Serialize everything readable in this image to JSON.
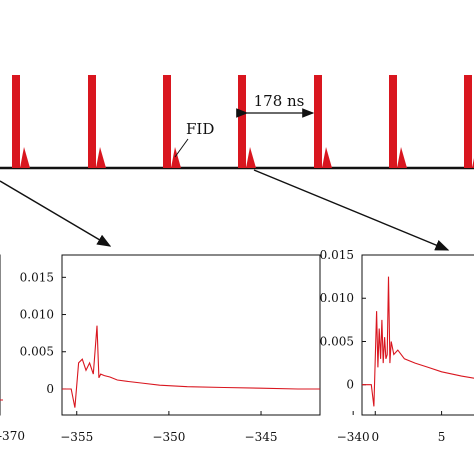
{
  "diagram": {
    "spacing_label": "178 ns",
    "fid_label": "FID",
    "pulse_color": "#d9161f",
    "trace_color": "#d9161f"
  },
  "chart_data": [
    {
      "type": "line",
      "title": "",
      "xlabel": "",
      "ylabel": "",
      "x_tick_labels": [
        "-370"
      ],
      "note": "left panel, mostly cropped"
    },
    {
      "type": "line",
      "title": "",
      "xlabel": "",
      "ylabel": "",
      "xlim": [
        -355.8,
        -341.8
      ],
      "ylim": [
        -0.0035,
        0.018
      ],
      "x_ticks": [
        -355,
        -350,
        -345,
        -340
      ],
      "x_tick_labels": [
        "−355",
        "−350",
        "−345",
        "−340"
      ],
      "y_ticks": [
        0,
        0.005,
        0.01,
        0.015
      ],
      "y_tick_labels": [
        "0",
        "0.005",
        "0.010",
        "0.015"
      ],
      "series": [
        {
          "x": [
            -355.8,
            -355.3,
            -355.1,
            -354.9,
            -354.7,
            -354.5,
            -354.3,
            -354.1,
            -353.9,
            -353.8,
            -353.7,
            -353.5,
            -353.2,
            -352.8,
            -352.2,
            -351.5,
            -350.5,
            -349.0,
            -347.0,
            -345.0,
            -343.0,
            -341.8
          ],
          "y": [
            0,
            0,
            -0.0025,
            0.0035,
            0.004,
            0.0025,
            0.0035,
            0.002,
            0.0085,
            0.0015,
            0.002,
            0.0018,
            0.0016,
            0.0012,
            0.001,
            0.0008,
            0.0005,
            0.0003,
            0.0002,
            0.0001,
            0.0,
            0.0
          ]
        }
      ]
    },
    {
      "type": "line",
      "title": "",
      "xlabel": "",
      "ylabel": "",
      "xlim": [
        -1.0,
        8.8
      ],
      "ylim": [
        -0.0035,
        0.015
      ],
      "x_ticks": [
        0,
        5
      ],
      "x_tick_labels": [
        "0",
        "5"
      ],
      "y_ticks": [
        0,
        0.005,
        0.01,
        0.015
      ],
      "y_tick_labels": [
        "0",
        "0.005",
        "0.010",
        "0.015"
      ],
      "series": [
        {
          "x": [
            -1.0,
            -0.3,
            -0.1,
            0.1,
            0.2,
            0.3,
            0.4,
            0.5,
            0.6,
            0.7,
            0.8,
            0.9,
            1.0,
            1.1,
            1.2,
            1.4,
            1.7,
            2.2,
            3.0,
            4.0,
            5.0,
            6.5,
            8.0,
            8.8
          ],
          "y": [
            0,
            0,
            -0.0025,
            0.0085,
            0.002,
            0.0065,
            0.003,
            0.0075,
            0.0025,
            0.0055,
            0.003,
            0.0035,
            0.0125,
            0.0025,
            0.005,
            0.0035,
            0.004,
            0.003,
            0.0025,
            0.002,
            0.0015,
            0.001,
            0.0006,
            0.0005
          ]
        }
      ]
    }
  ]
}
